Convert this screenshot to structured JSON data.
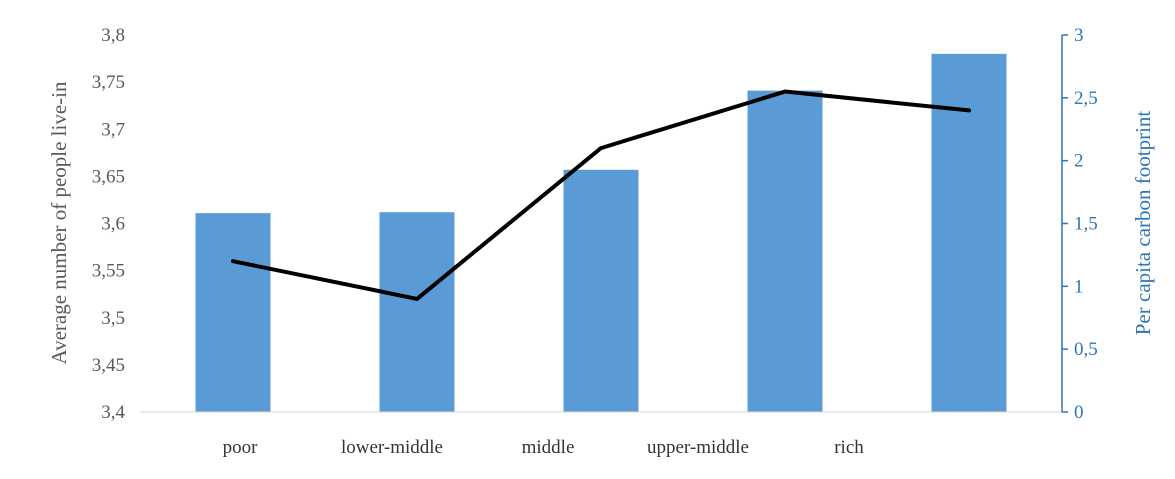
{
  "chart_data": {
    "type": "bar",
    "categories": [
      "poor",
      "lower-middle",
      "middle",
      "upper-middle",
      "rich"
    ],
    "series": [
      {
        "kind": "bar",
        "axis": "left",
        "color": "#5b9bd5",
        "values": [
          3.611,
          3.612,
          3.657,
          3.741,
          3.78
        ]
      },
      {
        "kind": "line",
        "axis": "right",
        "color": "#000000",
        "values": [
          1.2,
          0.9,
          2.1,
          2.55,
          2.4
        ]
      }
    ],
    "title": "",
    "ylabel": "Average number of people live-in",
    "y2label": "Per capita carbon footprint",
    "ylim": [
      3.4,
      3.8
    ],
    "y2lim": [
      0,
      3
    ],
    "yticks": [
      "3,4",
      "3,45",
      "3,5",
      "3,55",
      "3,6",
      "3,65",
      "3,7",
      "3,75",
      "3,8"
    ],
    "y2ticks": [
      "0",
      "0,5",
      "1",
      "1,5",
      "2",
      "2,5",
      "3"
    ],
    "right_axis_color": "#2e75b6",
    "grid": false,
    "legend": "none"
  }
}
